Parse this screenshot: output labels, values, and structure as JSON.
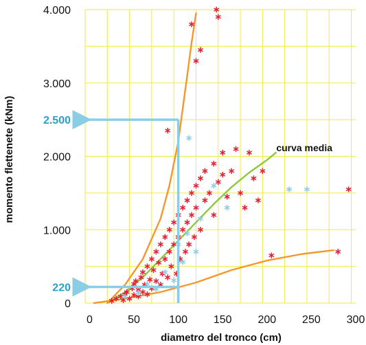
{
  "chart_data": {
    "type": "scatter",
    "xlabel": "diametro del tronco (cm)",
    "ylabel": "momento flettenete (kNm)",
    "xlim": [
      -5,
      300
    ],
    "ylim": [
      0,
      4000
    ],
    "x_ticks": [
      0,
      50,
      100,
      150,
      200,
      250,
      300
    ],
    "x_tick_labels": [
      "0",
      "50",
      "100",
      "150",
      "200",
      "250",
      "300"
    ],
    "y_ticks": [
      0,
      1000,
      2000,
      3000,
      4000
    ],
    "y_tick_labels": [
      "0",
      "1.000",
      "2.000",
      "3.000",
      "4.000"
    ],
    "grid": true,
    "colors": {
      "grid": "#f2ea3c",
      "scatter_red": "#e61e32",
      "scatter_blue": "#8ccde6",
      "curve_orange": "#f5962d",
      "curve_green": "#8cc83c",
      "callout_arrow": "#8ccde6",
      "callout_text": "#2aa0c8"
    },
    "series": [
      {
        "kind": "scatter",
        "color": "red",
        "points": [
          [
            25,
            30
          ],
          [
            30,
            60
          ],
          [
            35,
            90
          ],
          [
            38,
            40
          ],
          [
            40,
            120
          ],
          [
            42,
            150
          ],
          [
            45,
            60
          ],
          [
            48,
            200
          ],
          [
            50,
            110
          ],
          [
            50,
            260
          ],
          [
            52,
            300
          ],
          [
            55,
            90
          ],
          [
            55,
            180
          ],
          [
            58,
            350
          ],
          [
            60,
            150
          ],
          [
            60,
            420
          ],
          [
            62,
            250
          ],
          [
            65,
            500
          ],
          [
            65,
            120
          ],
          [
            68,
            320
          ],
          [
            70,
            600
          ],
          [
            70,
            200
          ],
          [
            72,
            450
          ],
          [
            75,
            700
          ],
          [
            75,
            300
          ],
          [
            78,
            550
          ],
          [
            80,
            800
          ],
          [
            80,
            250
          ],
          [
            82,
            400
          ],
          [
            85,
            900
          ],
          [
            85,
            600
          ],
          [
            88,
            350
          ],
          [
            90,
            1000
          ],
          [
            90,
            700
          ],
          [
            92,
            500
          ],
          [
            95,
            1100
          ],
          [
            95,
            800
          ],
          [
            98,
            400
          ],
          [
            100,
            1200
          ],
          [
            100,
            900
          ],
          [
            102,
            600
          ],
          [
            105,
            1300
          ],
          [
            105,
            1000
          ],
          [
            108,
            700
          ],
          [
            110,
            1400
          ],
          [
            110,
            1100
          ],
          [
            112,
            800
          ],
          [
            115,
            1500
          ],
          [
            115,
            1200
          ],
          [
            118,
            900
          ],
          [
            120,
            1600
          ],
          [
            120,
            1300
          ],
          [
            125,
            1700
          ],
          [
            125,
            1000
          ],
          [
            130,
            1800
          ],
          [
            130,
            1400
          ],
          [
            135,
            1500
          ],
          [
            140,
            1900
          ],
          [
            140,
            1200
          ],
          [
            145,
            1650
          ],
          [
            150,
            1750
          ],
          [
            155,
            1450
          ],
          [
            160,
            1800
          ],
          [
            165,
            2100
          ],
          [
            170,
            1500
          ],
          [
            175,
            1300
          ],
          [
            180,
            2050
          ],
          [
            185,
            1700
          ],
          [
            190,
            1400
          ],
          [
            195,
            1800
          ],
          [
            205,
            650
          ],
          [
            280,
            700
          ],
          [
            292,
            1550
          ],
          [
            115,
            3800
          ],
          [
            145,
            3900
          ],
          [
            143,
            4000
          ],
          [
            125,
            3450
          ],
          [
            120,
            3300
          ],
          [
            88,
            2350
          ],
          [
            150,
            2050
          ]
        ]
      },
      {
        "kind": "scatter",
        "color": "light-blue",
        "points": [
          [
            40,
            90
          ],
          [
            55,
            140
          ],
          [
            65,
            260
          ],
          [
            75,
            190
          ],
          [
            85,
            420
          ],
          [
            95,
            310
          ],
          [
            100,
            800
          ],
          [
            105,
            560
          ],
          [
            110,
            950
          ],
          [
            120,
            700
          ],
          [
            125,
            1150
          ],
          [
            140,
            1600
          ],
          [
            155,
            1300
          ],
          [
            225,
            1550
          ],
          [
            112,
            2250
          ],
          [
            245,
            1550
          ]
        ]
      },
      {
        "kind": "curve",
        "name": "curva media",
        "color": "green",
        "points": [
          [
            20,
            0
          ],
          [
            40,
            150
          ],
          [
            60,
            350
          ],
          [
            80,
            600
          ],
          [
            100,
            850
          ],
          [
            120,
            1100
          ],
          [
            140,
            1350
          ],
          [
            160,
            1580
          ],
          [
            180,
            1780
          ],
          [
            200,
            1950
          ],
          [
            210,
            2050
          ]
        ]
      },
      {
        "kind": "curve",
        "color": "orange",
        "points": [
          [
            20,
            0
          ],
          [
            40,
            250
          ],
          [
            60,
            600
          ],
          [
            80,
            1150
          ],
          [
            90,
            1600
          ],
          [
            100,
            2200
          ],
          [
            105,
            2650
          ],
          [
            110,
            3100
          ],
          [
            115,
            3550
          ],
          [
            120,
            3950
          ]
        ]
      },
      {
        "kind": "curve",
        "color": "orange",
        "points": [
          [
            5,
            0
          ],
          [
            40,
            60
          ],
          [
            80,
            150
          ],
          [
            120,
            280
          ],
          [
            160,
            450
          ],
          [
            200,
            580
          ],
          [
            240,
            670
          ],
          [
            275,
            720
          ]
        ]
      }
    ],
    "annotations": [
      {
        "text": "curva media",
        "x": 212,
        "y": 2050
      },
      {
        "text": "2.500",
        "y": 2500,
        "arrow_from_x": 100
      },
      {
        "text": "220",
        "y": 220,
        "arrow_from_x": 100
      }
    ]
  }
}
